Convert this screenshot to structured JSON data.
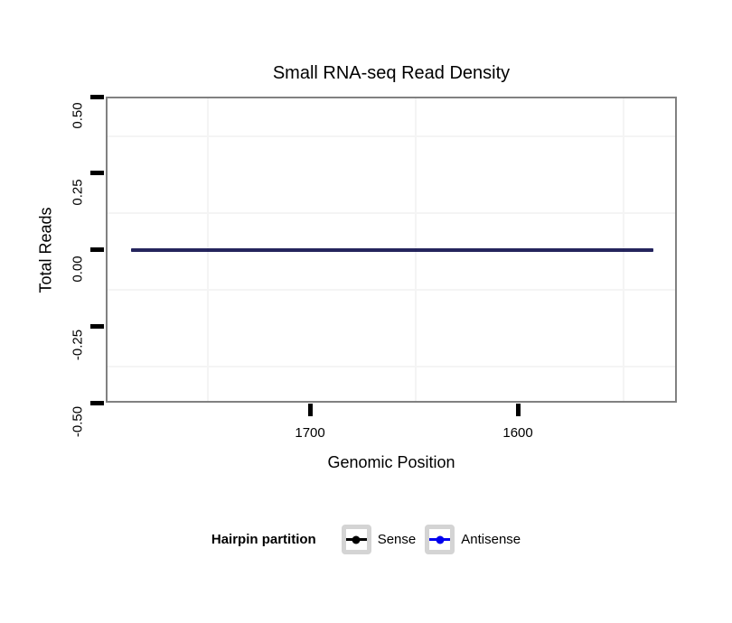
{
  "chart_data": {
    "type": "line",
    "title": "Small RNA-seq Read Density",
    "xlabel": "Genomic Position",
    "ylabel": "Total Reads",
    "x_axis": {
      "reversed": true,
      "range": [
        1798.3,
        1523.5
      ],
      "ticks": [
        {
          "pos": 1700,
          "label": "1700"
        },
        {
          "pos": 1600,
          "label": "1600"
        }
      ],
      "minor_ticks": [
        1750,
        1650,
        1550
      ]
    },
    "y_axis": {
      "range": [
        0.5,
        -0.5
      ],
      "ticks": [
        {
          "pos": 0.5,
          "label": "0.50"
        },
        {
          "pos": 0.25,
          "label": "0.25"
        },
        {
          "pos": 0.0,
          "label": "0.00"
        },
        {
          "pos": -0.25,
          "label": "-0.25"
        },
        {
          "pos": -0.5,
          "label": "-0.50"
        }
      ],
      "minor_ticks": [
        0.375,
        0.125,
        -0.125,
        -0.375
      ]
    },
    "series": [
      {
        "name": "Sense",
        "color": "#000000",
        "x": [
          1786,
          1535
        ],
        "y": [
          0,
          0
        ]
      },
      {
        "name": "Antisense",
        "color": "#0000EE",
        "x": [
          1786,
          1535
        ],
        "y": [
          0,
          0
        ]
      }
    ],
    "legend": {
      "title": "Hairpin partition",
      "position": "bottom",
      "entries": [
        {
          "label": "Sense",
          "color": "#000000"
        },
        {
          "label": "Antisense",
          "color": "#0000EE"
        }
      ]
    },
    "colors": {
      "panel_border": "#818181",
      "minor_gridline": "#f4f4f4",
      "tick_mark": "#000000",
      "plot_line_appearance": "#292962",
      "legend_key_border": "#d4d4d4"
    },
    "layout_hints": {
      "grid": "minor-only",
      "legend_position": "bottom-center"
    }
  }
}
